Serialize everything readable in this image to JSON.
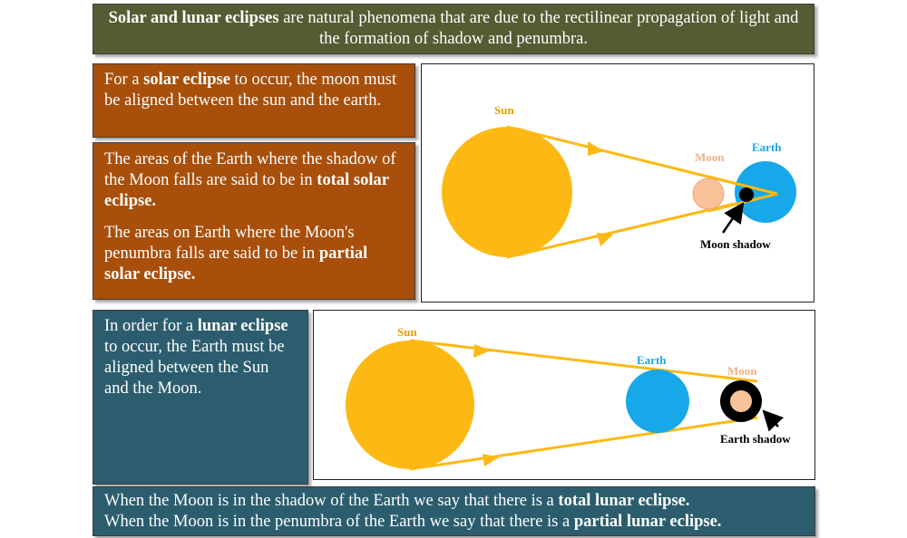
{
  "intro": {
    "bold": "Solar and lunar eclipses",
    "rest": " are natural phenomena that are due to the rectilinear propagation of light and the formation of shadow and penumbra."
  },
  "solar_condition": {
    "pre": "For a ",
    "bold": "solar eclipse",
    "post": " to occur, the moon must be aligned between the sun and the earth."
  },
  "solar_types": {
    "total_pre": "The areas of the Earth where the shadow of the Moon falls are said to be in ",
    "total_bold": "total solar eclipse.",
    "partial_pre": "The areas on Earth where the Moon's penumbra falls are said to be in ",
    "partial_bold": "partial solar eclipse."
  },
  "lunar_condition": {
    "pre": "In order for a ",
    "bold": "lunar eclipse",
    "post": " to occur, the Earth must be aligned between the Sun and the Moon."
  },
  "lunar_types": {
    "total_pre": "When the Moon is in the shadow of the Earth we say that there is a ",
    "total_bold": "total lunar eclipse.",
    "partial_pre": "When the Moon is in the penumbra of the Earth we say that there is a ",
    "partial_bold": "partial lunar eclipse."
  },
  "solar_diagram": {
    "sun_label": "Sun",
    "moon_label": "Moon",
    "earth_label": "Earth",
    "shadow_label": "Moon shadow"
  },
  "lunar_diagram": {
    "sun_label": "Sun",
    "earth_label": "Earth",
    "moon_label": "Moon",
    "shadow_label": "Earth shadow"
  },
  "colors": {
    "sun": "#fdb913",
    "light_ray": "#fdb913",
    "moon": "#f9c29a",
    "earth": "#17a8e9",
    "sun_label": "#e8a000",
    "moon_label": "#f4b185",
    "earth_label": "#17a8e9",
    "shadow": "#000000"
  }
}
